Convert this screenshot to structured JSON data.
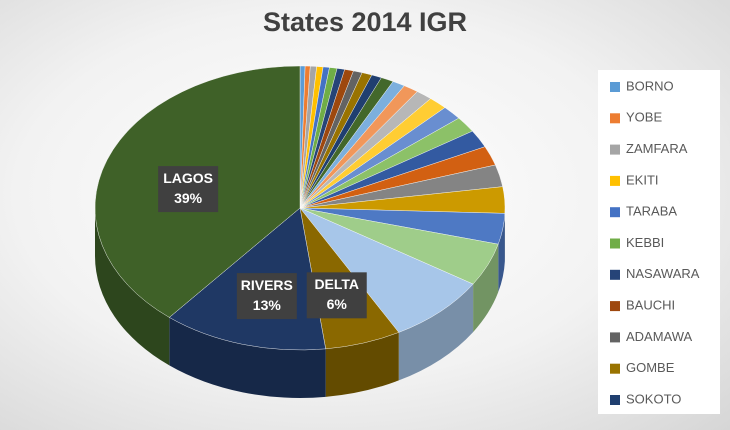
{
  "chart_data": {
    "type": "pie3d",
    "title": "States 2014 IGR",
    "categories": [
      "BORNO",
      "YOBE",
      "ZAMFARA",
      "EKITI",
      "TARABA",
      "KEBBI",
      "NASAWARA",
      "BAUCHI",
      "ADAMAWA",
      "GOMBE",
      "SOKOTO",
      null,
      null,
      null,
      null,
      null,
      null,
      null,
      null,
      null,
      null,
      null,
      null,
      null,
      null,
      "DELTA",
      "RIVERS",
      "LAGOS"
    ],
    "values": [
      0.4,
      0.4,
      0.5,
      0.5,
      0.5,
      0.6,
      0.6,
      0.7,
      0.7,
      0.8,
      0.8,
      1,
      1,
      1.2,
      1.3,
      1.5,
      1.6,
      1.8,
      2,
      2.2,
      2.5,
      3,
      3.5,
      4.9,
      8,
      6,
      13,
      39
    ],
    "value_labels": [
      null,
      null,
      null,
      null,
      null,
      null,
      null,
      null,
      null,
      null,
      null,
      null,
      null,
      null,
      null,
      null,
      null,
      null,
      null,
      null,
      null,
      null,
      null,
      null,
      null,
      "6%",
      "13%",
      "39%"
    ],
    "colors": [
      "#5b9bd5",
      "#ed7d31",
      "#a5a5a5",
      "#ffc000",
      "#4472c4",
      "#70ad47",
      "#264478",
      "#9e480e",
      "#636363",
      "#997300",
      "#203f70",
      "#43682b",
      "#7cafdd",
      "#f1975a",
      "#b7b7b7",
      "#ffcd33",
      "#698ed0",
      "#8cc168",
      "#335aa1",
      "#d26012",
      "#848484",
      "#cc9a00",
      "#4e79c4",
      "#9fcd8a",
      "#a7c6e9",
      "#8a6800",
      "#1f3864",
      "#3f6128"
    ]
  }
}
